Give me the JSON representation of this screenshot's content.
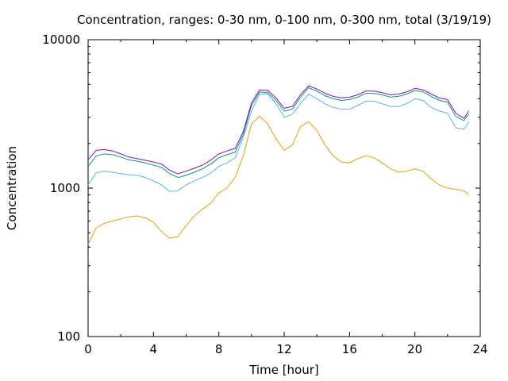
{
  "chart_data": {
    "type": "line",
    "title": "Concentration, ranges: 0-30 nm, 0-100 nm, 0-300 nm, total (3/19/19)",
    "xlabel": "Time [hour]",
    "ylabel": "Concentration",
    "xlim": [
      0,
      24
    ],
    "ylim": [
      100,
      10000
    ],
    "yscale": "log",
    "grid": false,
    "legend": "none",
    "x_ticks": [
      0,
      4,
      8,
      12,
      16,
      20,
      24
    ],
    "x_tick_labels": [
      "0",
      "4",
      "8",
      "12",
      "16",
      "20",
      "24"
    ],
    "y_ticks": [
      100,
      1000,
      10000
    ],
    "y_tick_labels": [
      "100",
      "1000",
      "10000"
    ],
    "x": [
      0,
      0.5,
      1,
      1.5,
      2,
      2.5,
      3,
      3.5,
      4,
      4.5,
      5,
      5.5,
      6,
      6.5,
      7,
      7.5,
      8,
      8.5,
      9,
      9.5,
      10,
      10.5,
      11,
      11.5,
      12,
      12.5,
      13,
      13.5,
      14,
      14.5,
      15,
      15.5,
      16,
      16.5,
      17,
      17.5,
      18,
      18.5,
      19,
      19.5,
      20,
      20.5,
      21,
      21.5,
      22,
      22.5,
      23,
      23.3
    ],
    "series": [
      {
        "color": "#e69f00",
        "values": [
          420,
          540,
          580,
          600,
          620,
          640,
          650,
          630,
          590,
          510,
          460,
          470,
          560,
          650,
          720,
          790,
          930,
          1000,
          1180,
          1650,
          2700,
          3050,
          2700,
          2150,
          1800,
          1950,
          2600,
          2800,
          2450,
          1950,
          1650,
          1500,
          1480,
          1580,
          1650,
          1600,
          1480,
          1350,
          1280,
          1300,
          1350,
          1300,
          1150,
          1050,
          1000,
          980,
          960,
          910
        ]
      },
      {
        "color": "#56b4e9",
        "values": [
          1050,
          1270,
          1300,
          1280,
          1250,
          1230,
          1220,
          1180,
          1120,
          1050,
          950,
          960,
          1050,
          1120,
          1180,
          1260,
          1400,
          1480,
          1600,
          2200,
          3300,
          4300,
          4300,
          3700,
          3000,
          3150,
          3700,
          4300,
          4000,
          3700,
          3500,
          3400,
          3400,
          3600,
          3850,
          3850,
          3700,
          3550,
          3550,
          3700,
          4000,
          3900,
          3500,
          3300,
          3200,
          2550,
          2500,
          2800
        ]
      },
      {
        "color": "#009e73",
        "values": [
          1400,
          1650,
          1700,
          1680,
          1620,
          1550,
          1520,
          1480,
          1430,
          1380,
          1250,
          1180,
          1220,
          1280,
          1350,
          1450,
          1600,
          1680,
          1750,
          2300,
          3600,
          4450,
          4400,
          3900,
          3300,
          3400,
          4100,
          4750,
          4500,
          4200,
          4000,
          3900,
          3950,
          4100,
          4350,
          4350,
          4250,
          4100,
          4150,
          4300,
          4550,
          4450,
          4150,
          3900,
          3800,
          3050,
          2850,
          3150
        ]
      },
      {
        "color": "#9400d3",
        "values": [
          1550,
          1800,
          1820,
          1780,
          1700,
          1620,
          1580,
          1540,
          1500,
          1450,
          1320,
          1250,
          1300,
          1360,
          1430,
          1540,
          1700,
          1780,
          1850,
          2400,
          3750,
          4600,
          4550,
          4050,
          3450,
          3550,
          4250,
          4900,
          4650,
          4350,
          4150,
          4050,
          4100,
          4250,
          4500,
          4500,
          4400,
          4250,
          4300,
          4450,
          4700,
          4600,
          4300,
          4050,
          3950,
          3200,
          2950,
          3300
        ]
      }
    ]
  }
}
